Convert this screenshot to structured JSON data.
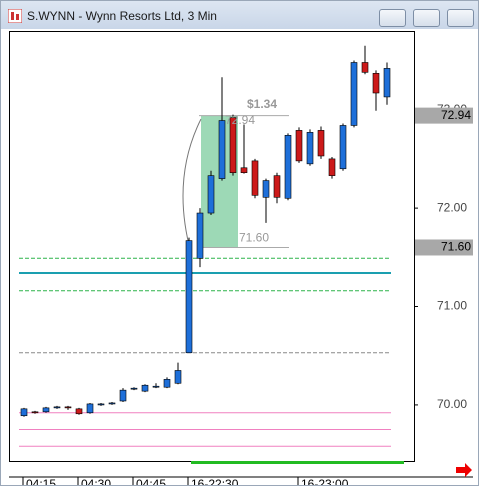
{
  "chart_data": {
    "type": "candlestick",
    "title": "S.WYNN - Wynn Resorts Ltd, 3 Min",
    "categories": [
      "04:15",
      null,
      null,
      null,
      null,
      "04:30",
      null,
      null,
      null,
      null,
      "04:45",
      null,
      null,
      null,
      null,
      "16-22:30",
      null,
      null,
      null,
      null,
      null,
      null,
      null,
      null,
      null,
      "16-23:00",
      null,
      null,
      null,
      null,
      null,
      null,
      null,
      null
    ],
    "open": [
      69.89,
      69.93,
      69.93,
      69.97,
      69.98,
      69.96,
      69.92,
      70.0,
      70.01,
      70.04,
      70.16,
      70.14,
      70.18,
      70.18,
      70.22,
      70.53,
      71.49,
      71.95,
      72.3,
      72.92,
      72.41,
      72.48,
      72.11,
      72.33,
      72.1,
      72.79,
      72.45,
      72.79,
      72.5,
      72.4,
      72.84,
      73.48,
      73.37,
      73.13
    ],
    "high": [
      69.97,
      69.94,
      69.98,
      69.99,
      69.99,
      69.97,
      70.02,
      70.02,
      70.03,
      70.17,
      70.18,
      70.21,
      70.22,
      70.28,
      70.43,
      71.7,
      72.0,
      72.38,
      73.33,
      72.95,
      72.85,
      72.5,
      72.3,
      72.36,
      72.76,
      72.82,
      72.8,
      72.83,
      72.52,
      72.86,
      73.5,
      73.65,
      73.4,
      73.48
    ],
    "low": [
      69.88,
      69.91,
      69.92,
      69.96,
      69.95,
      69.9,
      69.91,
      69.99,
      70.0,
      70.03,
      70.15,
      70.13,
      70.17,
      70.17,
      70.21,
      70.53,
      71.4,
      71.93,
      72.28,
      72.33,
      72.35,
      72.1,
      71.85,
      72.05,
      72.08,
      72.46,
      72.43,
      72.5,
      72.3,
      72.38,
      72.82,
      73.36,
      72.99,
      73.05
    ],
    "close": [
      69.96,
      69.92,
      69.97,
      69.98,
      69.97,
      69.91,
      70.01,
      70.01,
      70.02,
      70.15,
      70.17,
      70.2,
      70.19,
      70.26,
      70.35,
      71.67,
      71.95,
      72.33,
      72.89,
      72.36,
      72.36,
      72.13,
      72.28,
      72.11,
      72.74,
      72.48,
      72.77,
      72.53,
      72.33,
      72.84,
      73.48,
      73.38,
      73.17,
      73.42
    ],
    "up_color": "#1e6fd9",
    "down_color": "#cc1a1a",
    "ylim": [
      69.43,
      73.8
    ],
    "yticks": [
      {
        "value": 70,
        "label": "70.00"
      },
      {
        "value": 71,
        "label": "71.00"
      },
      {
        "value": 72,
        "label": "72.00"
      },
      {
        "value": 73,
        "label": "73.00"
      }
    ],
    "levels": [
      {
        "value": 71.49,
        "color": "#2db34a",
        "style": "dashed"
      },
      {
        "value": 71.34,
        "color": "#1a9fb0",
        "style": "solid"
      },
      {
        "value": 71.16,
        "color": "#2db34a",
        "style": "dashed"
      },
      {
        "value": 70.53,
        "color": "#888888",
        "style": "dashed"
      },
      {
        "value": 69.92,
        "color": "#f080c0",
        "style": "solid"
      },
      {
        "value": 69.75,
        "color": "#f080c0",
        "style": "solid"
      },
      {
        "value": 69.58,
        "color": "#f080c0",
        "style": "solid"
      }
    ],
    "measure": {
      "from": {
        "value": 71.6,
        "label": "71.60"
      },
      "to": {
        "value": 72.94,
        "label": "72.94"
      },
      "change": {
        "value": 1.34,
        "label": "$1.34"
      }
    },
    "price_markers": [
      {
        "value": 72.94,
        "label": "72.94"
      },
      {
        "value": 71.6,
        "label": "71.60"
      }
    ]
  }
}
